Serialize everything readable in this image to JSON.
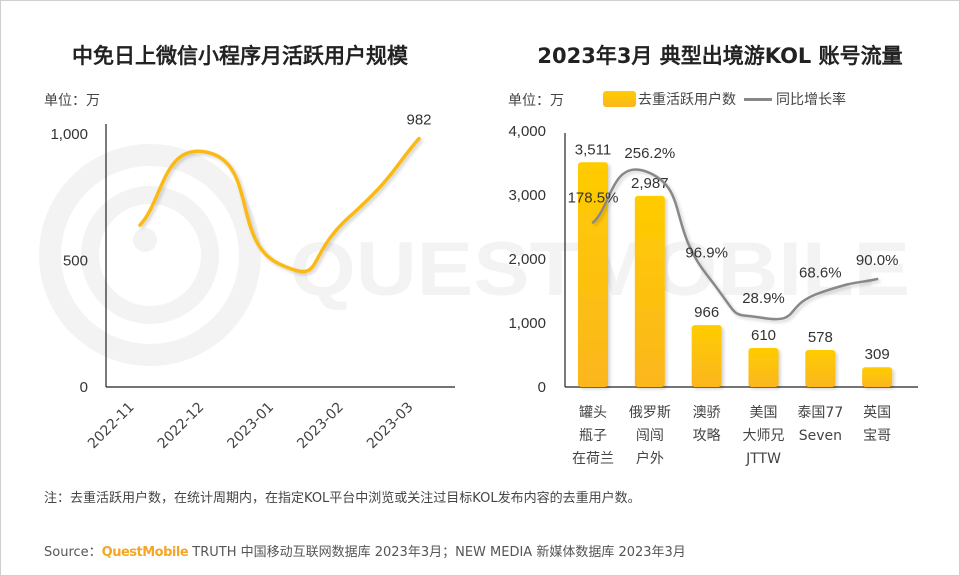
{
  "left": {
    "title": "中免日上微信小程序月活跃用户规模",
    "unit": "单位：万"
  },
  "right": {
    "title": "2023年3月 典型出境游KOL 账号流量",
    "unit": "单位：万",
    "legend": {
      "bar": "去重活跃用户数",
      "line": "同比增长率"
    }
  },
  "watermark": "QUESTMOBILE",
  "note": "注：去重活跃用户数，在统计周期内，在指定KOL平台中浏览或关注过目标KOL发布内容的去重用户数。",
  "source": {
    "prefix": "Source：",
    "brand": "QuestMobile",
    "rest": " TRUTH 中国移动互联网数据库 2023年3月；NEW MEDIA 新媒体数据库 2023年3月"
  },
  "colors": {
    "bar_top": "#ffcc00",
    "bar_bottom": "#fbb61e",
    "line_left": "#fbb914",
    "line_right": "#888888",
    "brand": "#f6a623"
  },
  "chart_data": [
    {
      "type": "line",
      "title": "中免日上微信小程序月活跃用户规模",
      "ylabel": "单位：万",
      "x": [
        "2022-11",
        "2022-12",
        "2023-01",
        "2023-02",
        "2023-03"
      ],
      "values": [
        640,
        925,
        486,
        672,
        982
      ],
      "data_labels": {
        "4": "982"
      },
      "ylim": [
        0,
        1000
      ],
      "yticks": [
        "0",
        "500",
        "1,000"
      ],
      "grid": false,
      "smooth": true
    },
    {
      "type": "bar",
      "title": "2023年3月 典型出境游KOL 账号流量",
      "ylabel": "单位：万",
      "categories": [
        [
          "罐头",
          "瓶子",
          "在荷兰"
        ],
        [
          "俄罗斯",
          "闯闯",
          "户外"
        ],
        [
          "澳骄",
          "攻略"
        ],
        [
          "美国",
          "大师兄",
          "JTTW"
        ],
        [
          "泰国77",
          "Seven"
        ],
        [
          "英国",
          "宝哥"
        ]
      ],
      "series": [
        {
          "name": "去重活跃用户数",
          "type": "bar",
          "values": [
            3511,
            2987,
            966,
            610,
            578,
            309
          ],
          "labels": [
            "3,511",
            "2,987",
            "966",
            "610",
            "578",
            "309"
          ]
        },
        {
          "name": "同比增长率",
          "type": "line",
          "values": [
            178.5,
            256.2,
            96.9,
            28.9,
            68.6,
            90.0
          ],
          "labels": [
            "178.5%",
            "256.2%",
            "96.9%",
            "28.9%",
            "68.6%",
            "90.0%"
          ]
        }
      ],
      "ylim": [
        0,
        4000
      ],
      "yticks": [
        "0",
        "1,000",
        "2,000",
        "3,000",
        "4,000"
      ],
      "legend": "top",
      "grid": false
    }
  ]
}
